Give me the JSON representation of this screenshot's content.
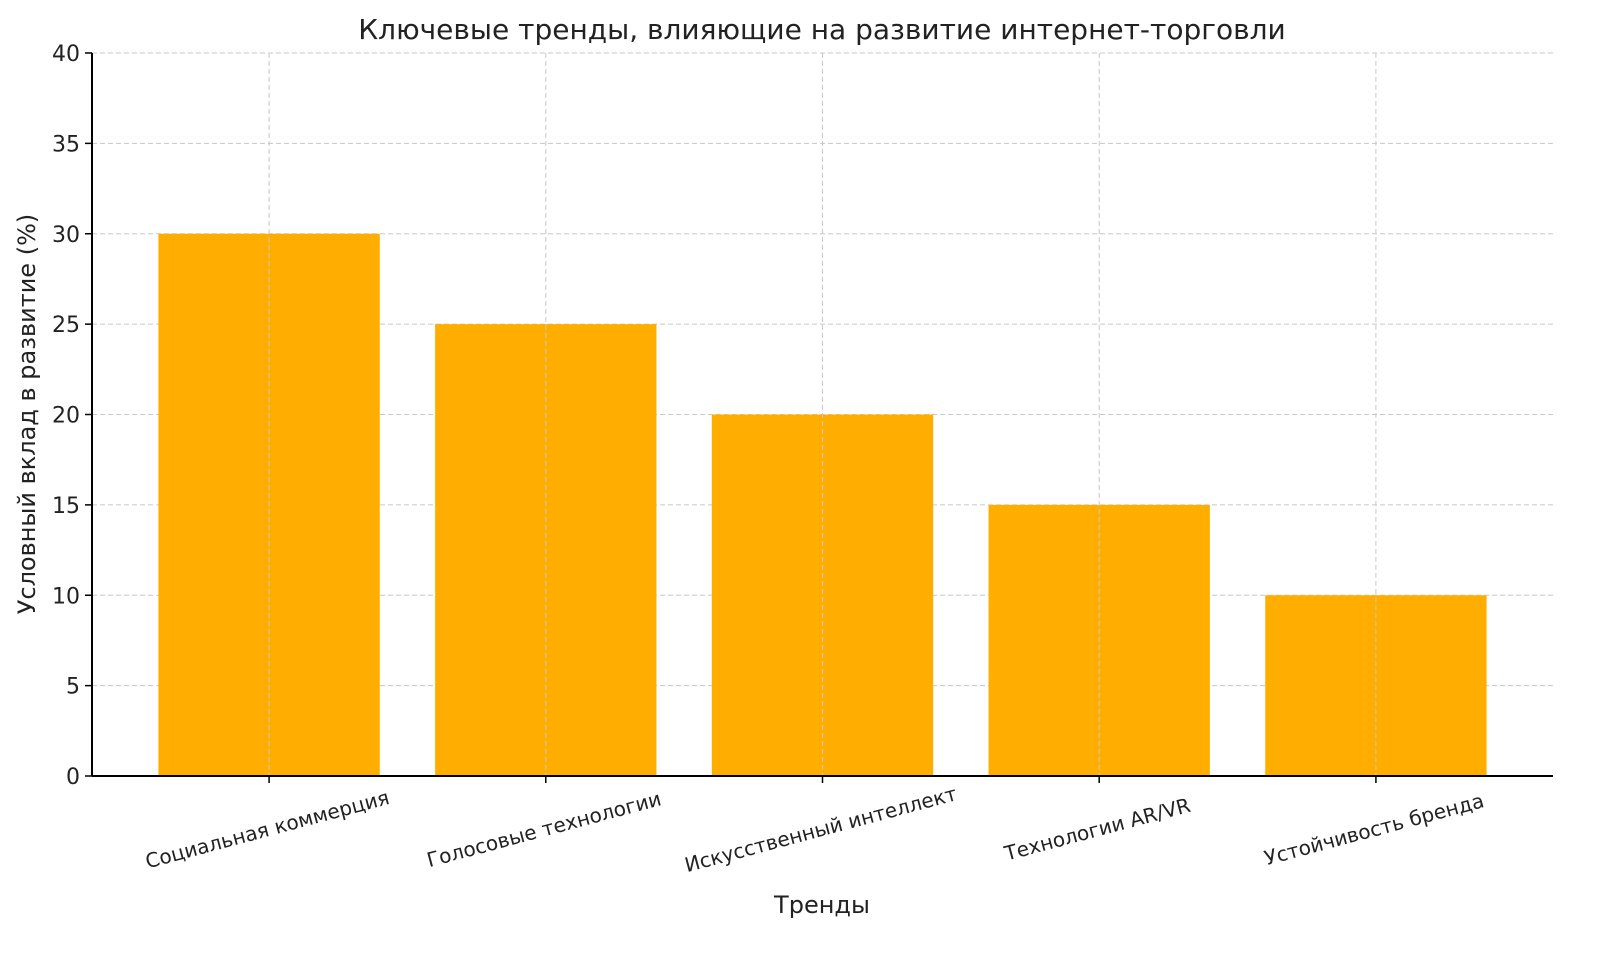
{
  "chart_data": {
    "type": "bar",
    "title": "Ключевые тренды, влияющие на развитие интернет-торговли",
    "xlabel": "Тренды",
    "ylabel": "Условный вклад в развитие (%)",
    "categories": [
      "Социальная коммерция",
      "Голосовые технологии",
      "Искусственный интеллект",
      "Технологии AR/VR",
      "Устойчивость бренда"
    ],
    "values": [
      30,
      25,
      20,
      15,
      10
    ],
    "ylim": [
      0,
      40
    ],
    "yticks": [
      0,
      5,
      10,
      15,
      20,
      25,
      30,
      35,
      40
    ],
    "grid": true,
    "bar_color": "#FFAE00",
    "tick_label_rotation_deg": 15
  }
}
